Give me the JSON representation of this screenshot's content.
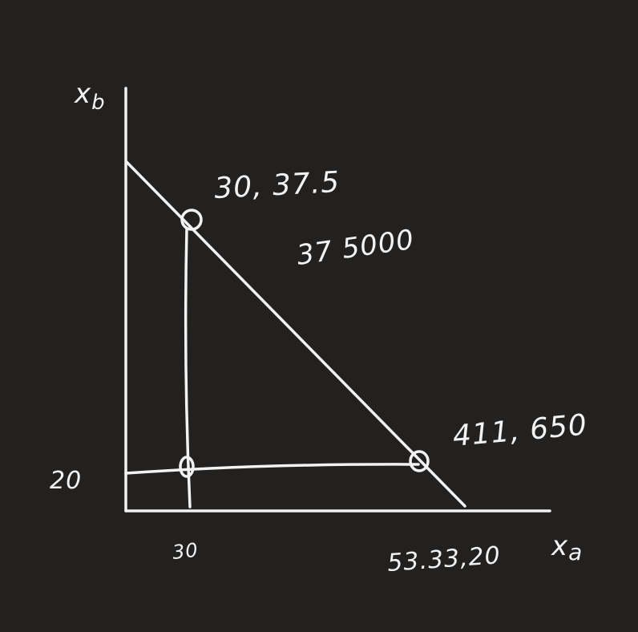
{
  "axes": {
    "y_label": "x",
    "y_label_sub": "b",
    "x_label": "x",
    "x_label_sub": "a"
  },
  "ticks": {
    "y_20": "20",
    "x_30": "30",
    "x_5333": "53.33,20"
  },
  "annotations": {
    "point_top": "30, 37.5",
    "point_top_value": "37 5000",
    "point_right": "411, 650"
  },
  "colors": {
    "background": "#222120",
    "ink": "#f2f2f2"
  }
}
